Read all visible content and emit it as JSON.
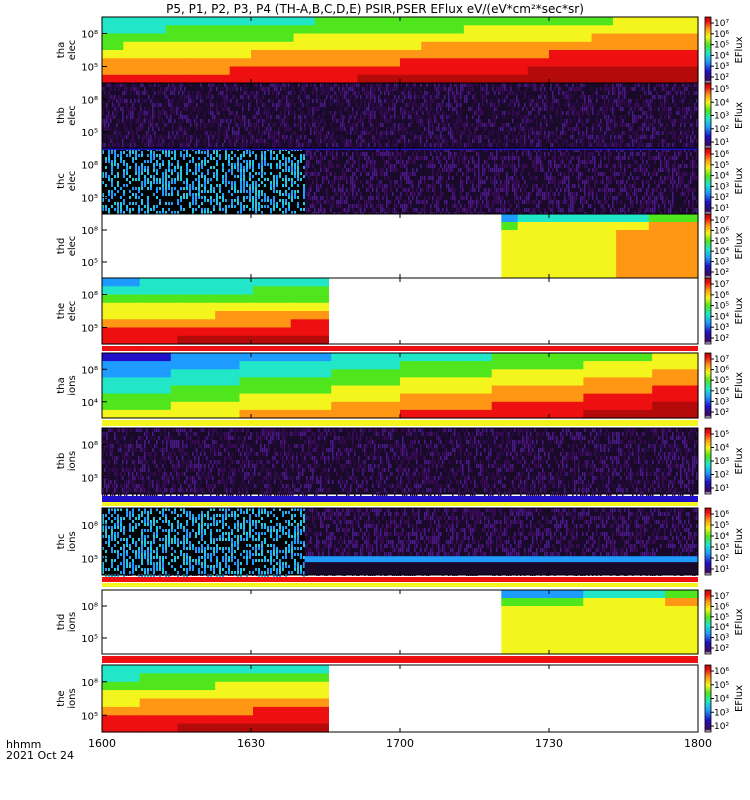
{
  "title": "P5, P1, P2, P3, P4 (TH-A,B,C,D,E) PSIR,PSER EFlux eV/(eV*cm²*sec*sr)",
  "colorbar_label": "EFlux",
  "time_label": "hhmm",
  "date_label": "2021 Oct 24",
  "chart_data": {
    "type": "heatmap",
    "x_ticks": [
      "1600",
      "1630",
      "1700",
      "1730",
      "1800"
    ],
    "xlim": [
      "1600",
      "1800"
    ],
    "panels": [
      {
        "label1": "tha",
        "label2": "elec",
        "y_ticks": [
          "10⁸",
          "10⁵"
        ],
        "cb_ticks": [
          "10⁷",
          "10⁶",
          "10⁵",
          "10⁴",
          "10³",
          "10²"
        ]
      },
      {
        "label1": "thb",
        "label2": "elec",
        "y_ticks": [
          "10⁸",
          "10⁵"
        ],
        "cb_ticks": [
          "10⁵",
          "10⁴",
          "10³",
          "10²",
          "10¹"
        ]
      },
      {
        "label1": "thc",
        "label2": "elec",
        "y_ticks": [
          "10⁸",
          "10⁵"
        ],
        "cb_ticks": [
          "10⁶",
          "10⁵",
          "10⁴",
          "10³",
          "10²",
          "10¹"
        ]
      },
      {
        "label1": "thd",
        "label2": "elec",
        "y_ticks": [
          "10⁸",
          "10⁵"
        ],
        "cb_ticks": [
          "10⁷",
          "10⁶",
          "10⁵",
          "10⁴",
          "10³",
          "10²"
        ]
      },
      {
        "label1": "the",
        "label2": "elec",
        "y_ticks": [
          "10⁸",
          "10⁵"
        ],
        "cb_ticks": [
          "10⁷",
          "10⁶",
          "10⁵",
          "10⁴",
          "10³",
          "10²"
        ]
      },
      {
        "label1": "tha",
        "label2": "ions",
        "y_ticks": [
          "10⁸",
          "10⁴"
        ],
        "cb_ticks": [
          "10⁷",
          "10⁶",
          "10⁵",
          "10⁴",
          "10³",
          "10²"
        ]
      },
      {
        "label1": "thb",
        "label2": "ions",
        "y_ticks": [
          "10⁸",
          "10⁵"
        ],
        "cb_ticks": [
          "10⁵",
          "10⁴",
          "10³",
          "10²",
          "10¹"
        ]
      },
      {
        "label1": "thc",
        "label2": "ions",
        "y_ticks": [
          "10⁸",
          "10⁵"
        ],
        "cb_ticks": [
          "10⁶",
          "10⁵",
          "10⁴",
          "10³",
          "10²",
          "10¹"
        ]
      },
      {
        "label1": "thd",
        "label2": "ions",
        "y_ticks": [
          "10⁸",
          "10⁵"
        ],
        "cb_ticks": [
          "10⁷",
          "10⁶",
          "10⁵",
          "10⁴",
          "10³",
          "10²"
        ]
      },
      {
        "label1": "the",
        "label2": "ions",
        "y_ticks": [
          "10⁸",
          "10⁵"
        ],
        "cb_ticks": [
          "10⁶",
          "10⁵",
          "10⁴",
          "10³",
          "10²"
        ]
      }
    ]
  }
}
